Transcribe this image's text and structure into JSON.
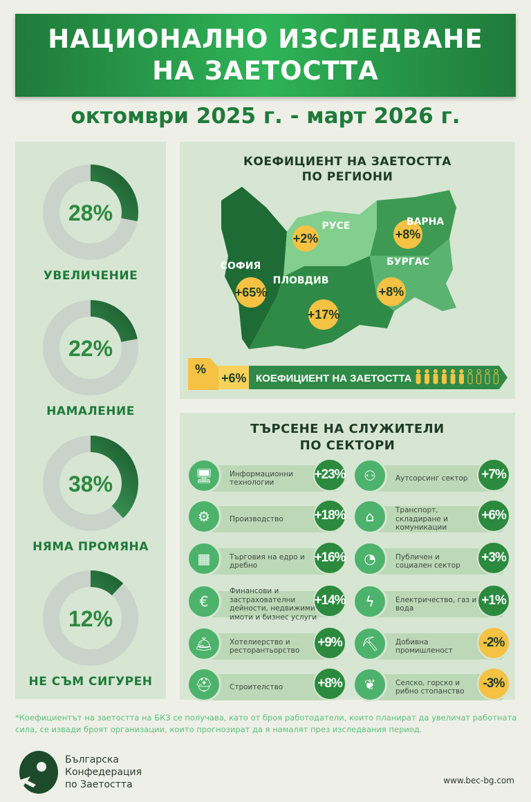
{
  "header": {
    "title_line1": "НАЦИОНАЛНО ИЗСЛЕДВАНЕ",
    "title_line2": "НА ЗАЕТОСТТА",
    "period": "октомври 2025 г. - март 2026 г."
  },
  "colors": {
    "primary": "#1f7a3a",
    "accent": "#f6c244",
    "panel": "#d7e6d3",
    "background": "#eef0e8"
  },
  "expectations": [
    {
      "value": 28,
      "display": "28%",
      "label": "УВЕЛИЧЕНИЕ"
    },
    {
      "value": 22,
      "display": "22%",
      "label": "НАМАЛЕНИЕ"
    },
    {
      "value": 38,
      "display": "38%",
      "label": "НЯМА ПРОМЯНА"
    },
    {
      "value": 12,
      "display": "12%",
      "label": "НЕ СЪМ СИГУРЕН"
    }
  ],
  "regions": {
    "title_line1": "КОЕФИЦИЕНТ НА ЗАЕТОСТТА",
    "title_line2": "ПО РЕГИОНИ",
    "items": [
      {
        "name": "СОФИЯ",
        "value": "+65%"
      },
      {
        "name": "РУСЕ",
        "value": "+2%"
      },
      {
        "name": "ВАРНА",
        "value": "+8%"
      },
      {
        "name": "БУРГАС",
        "value": "+8%"
      },
      {
        "name": "ПЛОВДИВ",
        "value": "+17%"
      }
    ],
    "legend": {
      "percent_symbol": "%",
      "value": "+6%",
      "label": "КОЕФИЦИЕНТ НА ЗАЕТОСТТА",
      "people_filled": 6,
      "people_total": 10
    }
  },
  "sectors": {
    "title_line1": "ТЪРСЕНЕ НА СЛУЖИТЕЛИ",
    "title_line2": "ПО СЕКТОРИ",
    "left": [
      {
        "icon": "monitor-icon",
        "label": "Информационни технологии",
        "value": "+23%"
      },
      {
        "icon": "gear-conveyor-icon",
        "label": "Производство",
        "value": "+18%"
      },
      {
        "icon": "pallet-truck-icon",
        "label": "Търговия на едро и дребно",
        "value": "+16%"
      },
      {
        "icon": "euro-coins-icon",
        "label": "Финансови и застрахователни дейности, недвижими имоти и бизнес услуги",
        "value": "+14%"
      },
      {
        "icon": "cloche-icon",
        "label": "Хотелиерство и ресторантьорство",
        "value": "+9%"
      },
      {
        "icon": "hard-hat-icon",
        "label": "Строителство",
        "value": "+8%"
      }
    ],
    "right": [
      {
        "icon": "outsourcing-icon",
        "label": "Аутсорсинг сектор",
        "value": "+7%"
      },
      {
        "icon": "warehouse-icon",
        "label": "Транспорт, складиране и комуникации",
        "value": "+6%"
      },
      {
        "icon": "pie-icon",
        "label": "Публичен и социален сектор",
        "value": "+3%"
      },
      {
        "icon": "lightning-icon",
        "label": "Електричество, газ и вода",
        "value": "+1%"
      },
      {
        "icon": "pickaxe-icon",
        "label": "Добивна промишленост",
        "value": "-2%"
      },
      {
        "icon": "sprout-icon",
        "label": "Селско, горско и рибно стопанство",
        "value": "-3%"
      }
    ]
  },
  "footnote": "*Коефициентът на заетостта на БКЗ се получава, като от броя работодатели, които планират да увеличат работната сила, се извади броят организации, които прогнозират да я намалят през изследвания период.",
  "footer": {
    "org_line1": "Българска",
    "org_line2": "Конфедерация",
    "org_line3": "по Заетостта",
    "url": "www.bec-bg.com"
  }
}
